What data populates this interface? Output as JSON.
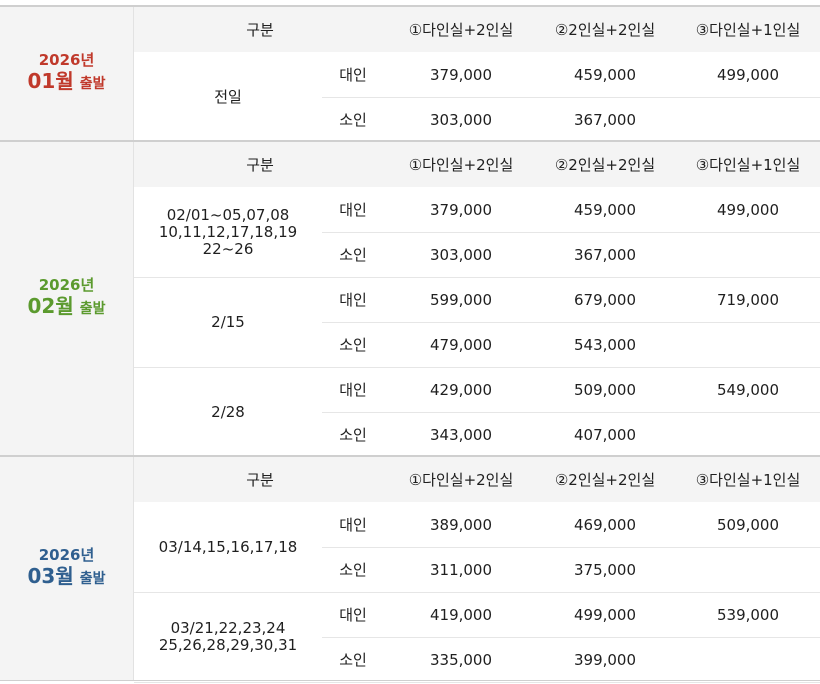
{
  "header": {
    "gubun": "구분",
    "col1": "①다인실+2인실",
    "col2": "②2인실+2인실",
    "col3": "③다인실+1인실"
  },
  "types": {
    "adult": "대인",
    "child": "소인"
  },
  "sections": [
    {
      "year": "2026년",
      "month": "01월",
      "departure": "출발",
      "color": "#c0392b",
      "groups": [
        {
          "dates": "전일",
          "adult": [
            "379,000",
            "459,000",
            "499,000"
          ],
          "child": [
            "303,000",
            "367,000",
            ""
          ]
        }
      ]
    },
    {
      "year": "2026년",
      "month": "02월",
      "departure": "출발",
      "color": "#5b9a2e",
      "groups": [
        {
          "dates": "02/01~05,07,08\n10,11,12,17,18,19\n22~26",
          "adult": [
            "379,000",
            "459,000",
            "499,000"
          ],
          "child": [
            "303,000",
            "367,000",
            ""
          ]
        },
        {
          "dates": "2/15",
          "adult": [
            "599,000",
            "679,000",
            "719,000"
          ],
          "child": [
            "479,000",
            "543,000",
            ""
          ]
        },
        {
          "dates": "2/28",
          "adult": [
            "429,000",
            "509,000",
            "549,000"
          ],
          "child": [
            "343,000",
            "407,000",
            ""
          ]
        }
      ]
    },
    {
      "year": "2026년",
      "month": "03월",
      "departure": "출발",
      "color": "#2f5f8f",
      "groups": [
        {
          "dates": "03/14,15,16,17,18",
          "adult": [
            "389,000",
            "469,000",
            "509,000"
          ],
          "child": [
            "311,000",
            "375,000",
            ""
          ]
        },
        {
          "dates": "03/21,22,23,24\n25,26,28,29,30,31",
          "adult": [
            "419,000",
            "499,000",
            "539,000"
          ],
          "child": [
            "335,000",
            "399,000",
            ""
          ]
        }
      ]
    }
  ]
}
